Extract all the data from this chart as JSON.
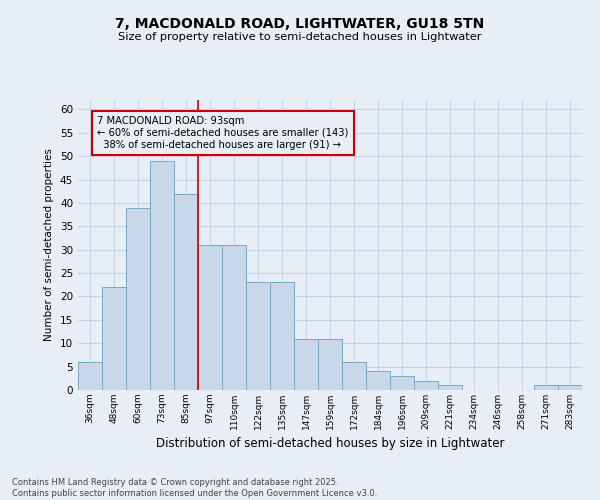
{
  "title": "7, MACDONALD ROAD, LIGHTWATER, GU18 5TN",
  "subtitle": "Size of property relative to semi-detached houses in Lightwater",
  "xlabel": "Distribution of semi-detached houses by size in Lightwater",
  "ylabel": "Number of semi-detached properties",
  "categories": [
    "36sqm",
    "48sqm",
    "60sqm",
    "73sqm",
    "85sqm",
    "97sqm",
    "110sqm",
    "122sqm",
    "135sqm",
    "147sqm",
    "159sqm",
    "172sqm",
    "184sqm",
    "196sqm",
    "209sqm",
    "221sqm",
    "234sqm",
    "246sqm",
    "258sqm",
    "271sqm",
    "283sqm"
  ],
  "values": [
    6,
    22,
    39,
    49,
    42,
    31,
    31,
    23,
    23,
    11,
    11,
    6,
    4,
    3,
    2,
    1,
    0,
    0,
    0,
    1,
    1
  ],
  "bar_color": "#c8d8e8",
  "bar_edge_color": "#7aaac8",
  "grid_color": "#c8d4e4",
  "background_color": "#e8eef6",
  "marker_label": "7 MACDONALD ROAD: 93sqm",
  "pct_smaller": "60%",
  "pct_smaller_n": 143,
  "pct_larger": "38%",
  "pct_larger_n": 91,
  "annotation_box_color": "#cc0000",
  "ylim": [
    0,
    62
  ],
  "yticks": [
    0,
    5,
    10,
    15,
    20,
    25,
    30,
    35,
    40,
    45,
    50,
    55,
    60
  ],
  "footer1": "Contains HM Land Registry data © Crown copyright and database right 2025.",
  "footer2": "Contains public sector information licensed under the Open Government Licence v3.0."
}
